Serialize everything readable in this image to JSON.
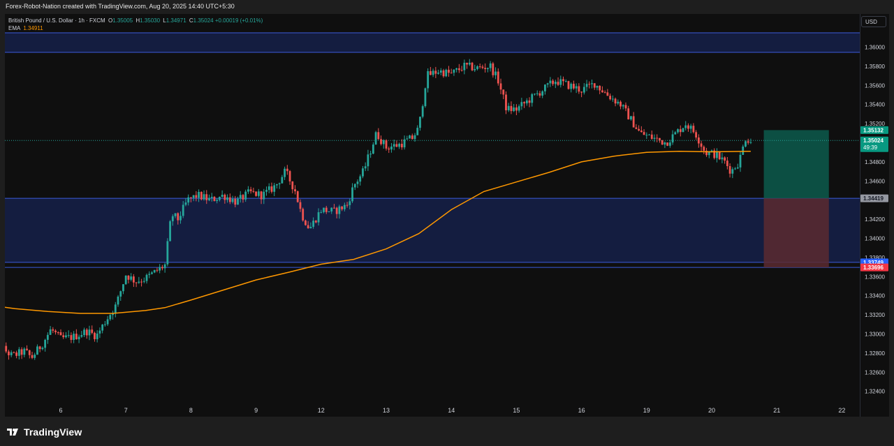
{
  "header": {
    "attribution": "Forex-Robot-Nation created with TradingView.com, Aug 20, 2025 14:40 UTC+5:30"
  },
  "legend": {
    "title": "British Pound / U.S. Dollar · 1h · FXCM",
    "ohlc": [
      {
        "key": "O",
        "value": "1.35005"
      },
      {
        "key": "H",
        "value": "1.35030"
      },
      {
        "key": "L",
        "value": "1.34971"
      },
      {
        "key": "C",
        "value": "1.35024"
      }
    ],
    "change": "+0.00019 (+0.01%)",
    "ema_label": "EMA",
    "ema_value": "1.34911"
  },
  "currency_button": "USD",
  "brand": {
    "name": "TradingView"
  },
  "colors": {
    "up": "#26a69a",
    "down": "#ef5350",
    "ema": "#ff9800",
    "zone_fill": "#1a2a6a",
    "zone_line": "#3b5bdb",
    "target_fill": "#0c5a4c",
    "stop_fill": "#5a2a30"
  },
  "chart_data": {
    "type": "candlestick",
    "symbol": "British Pound / U.S. Dollar",
    "timeframe": "1h",
    "ylim": [
      1.3235,
      1.3612
    ],
    "y_ticks": [
      "1.36000",
      "1.35800",
      "1.35600",
      "1.35400",
      "1.35200",
      "1.34800",
      "1.34600",
      "1.34200",
      "1.34000",
      "1.33800",
      "1.33600",
      "1.33400",
      "1.33200",
      "1.33000",
      "1.32800",
      "1.32600",
      "1.32400"
    ],
    "x_ticks": [
      {
        "label": "6",
        "t": 6.0
      },
      {
        "label": "7",
        "t": 7.0
      },
      {
        "label": "8",
        "t": 8.0
      },
      {
        "label": "9",
        "t": 9.0
      },
      {
        "label": "12",
        "t": 10.0
      },
      {
        "label": "13",
        "t": 11.0
      },
      {
        "label": "14",
        "t": 12.0
      },
      {
        "label": "15",
        "t": 13.0
      },
      {
        "label": "16",
        "t": 14.0
      },
      {
        "label": "19",
        "t": 15.0
      },
      {
        "label": "20",
        "t": 16.0
      },
      {
        "label": "21",
        "t": 17.0
      },
      {
        "label": "22",
        "t": 18.0
      }
    ],
    "t_range": [
      4.85,
      18.1
    ],
    "price_anchors": [
      {
        "t": 4.88,
        "p": 1.3296
      },
      {
        "t": 5.05,
        "p": 1.3288
      },
      {
        "t": 5.25,
        "p": 1.3277
      },
      {
        "t": 5.45,
        "p": 1.3282
      },
      {
        "t": 5.55,
        "p": 1.3275
      },
      {
        "t": 5.72,
        "p": 1.329
      },
      {
        "t": 5.85,
        "p": 1.3305
      },
      {
        "t": 6.0,
        "p": 1.3295
      },
      {
        "t": 6.2,
        "p": 1.3297
      },
      {
        "t": 6.4,
        "p": 1.3303
      },
      {
        "t": 6.55,
        "p": 1.3298
      },
      {
        "t": 6.7,
        "p": 1.3315
      },
      {
        "t": 6.85,
        "p": 1.333
      },
      {
        "t": 7.0,
        "p": 1.3362
      },
      {
        "t": 7.15,
        "p": 1.3355
      },
      {
        "t": 7.3,
        "p": 1.3358
      },
      {
        "t": 7.45,
        "p": 1.3365
      },
      {
        "t": 7.6,
        "p": 1.3372
      },
      {
        "t": 7.7,
        "p": 1.3425
      },
      {
        "t": 7.8,
        "p": 1.342
      },
      {
        "t": 7.95,
        "p": 1.344
      },
      {
        "t": 8.1,
        "p": 1.3445
      },
      {
        "t": 8.3,
        "p": 1.344
      },
      {
        "t": 8.5,
        "p": 1.3445
      },
      {
        "t": 8.7,
        "p": 1.3438
      },
      {
        "t": 8.9,
        "p": 1.3448
      },
      {
        "t": 9.1,
        "p": 1.3445
      },
      {
        "t": 9.3,
        "p": 1.3455
      },
      {
        "t": 9.45,
        "p": 1.347
      },
      {
        "t": 9.6,
        "p": 1.345
      },
      {
        "t": 9.7,
        "p": 1.3425
      },
      {
        "t": 9.82,
        "p": 1.341
      },
      {
        "t": 10.0,
        "p": 1.343
      },
      {
        "t": 10.2,
        "p": 1.3428
      },
      {
        "t": 10.4,
        "p": 1.3435
      },
      {
        "t": 10.5,
        "p": 1.3455
      },
      {
        "t": 10.65,
        "p": 1.347
      },
      {
        "t": 10.85,
        "p": 1.351
      },
      {
        "t": 11.0,
        "p": 1.3495
      },
      {
        "t": 11.2,
        "p": 1.3498
      },
      {
        "t": 11.4,
        "p": 1.3505
      },
      {
        "t": 11.5,
        "p": 1.3515
      },
      {
        "t": 11.62,
        "p": 1.357
      },
      {
        "t": 11.8,
        "p": 1.3575
      },
      {
        "t": 12.0,
        "p": 1.3572
      },
      {
        "t": 12.2,
        "p": 1.358
      },
      {
        "t": 12.4,
        "p": 1.3578
      },
      {
        "t": 12.6,
        "p": 1.358
      },
      {
        "t": 12.72,
        "p": 1.3565
      },
      {
        "t": 12.85,
        "p": 1.3535
      },
      {
        "t": 13.0,
        "p": 1.3535
      },
      {
        "t": 13.2,
        "p": 1.3545
      },
      {
        "t": 13.4,
        "p": 1.3555
      },
      {
        "t": 13.6,
        "p": 1.3565
      },
      {
        "t": 13.8,
        "p": 1.356
      },
      {
        "t": 14.0,
        "p": 1.3555
      },
      {
        "t": 14.2,
        "p": 1.3562
      },
      {
        "t": 14.4,
        "p": 1.355
      },
      {
        "t": 14.6,
        "p": 1.354
      },
      {
        "t": 14.75,
        "p": 1.3525
      },
      {
        "t": 14.9,
        "p": 1.351
      },
      {
        "t": 15.1,
        "p": 1.3505
      },
      {
        "t": 15.3,
        "p": 1.35
      },
      {
        "t": 15.45,
        "p": 1.351
      },
      {
        "t": 15.6,
        "p": 1.352
      },
      {
        "t": 15.75,
        "p": 1.351
      },
      {
        "t": 15.9,
        "p": 1.349
      },
      {
        "t": 16.05,
        "p": 1.3488
      },
      {
        "t": 16.2,
        "p": 1.348
      },
      {
        "t": 16.3,
        "p": 1.347
      },
      {
        "t": 16.42,
        "p": 1.348
      },
      {
        "t": 16.52,
        "p": 1.3505
      },
      {
        "t": 16.6,
        "p": 1.3502
      }
    ],
    "ema_path": [
      {
        "t": 4.85,
        "p": 1.33305
      },
      {
        "t": 5.3,
        "p": 1.33265
      },
      {
        "t": 5.8,
        "p": 1.33235
      },
      {
        "t": 6.3,
        "p": 1.33215
      },
      {
        "t": 6.8,
        "p": 1.33215
      },
      {
        "t": 7.3,
        "p": 1.33245
      },
      {
        "t": 7.6,
        "p": 1.33275
      },
      {
        "t": 8.0,
        "p": 1.33355
      },
      {
        "t": 8.5,
        "p": 1.3346
      },
      {
        "t": 9.0,
        "p": 1.33565
      },
      {
        "t": 9.5,
        "p": 1.33645
      },
      {
        "t": 10.0,
        "p": 1.3373
      },
      {
        "t": 10.5,
        "p": 1.3378
      },
      {
        "t": 11.0,
        "p": 1.3389
      },
      {
        "t": 11.5,
        "p": 1.3405
      },
      {
        "t": 12.0,
        "p": 1.343
      },
      {
        "t": 12.5,
        "p": 1.3449
      },
      {
        "t": 13.0,
        "p": 1.3459
      },
      {
        "t": 13.5,
        "p": 1.3469
      },
      {
        "t": 14.0,
        "p": 1.348
      },
      {
        "t": 14.5,
        "p": 1.3486
      },
      {
        "t": 15.0,
        "p": 1.349
      },
      {
        "t": 15.5,
        "p": 1.3491
      },
      {
        "t": 16.0,
        "p": 1.34905
      },
      {
        "t": 16.6,
        "p": 1.34911
      }
    ],
    "zones": [
      {
        "name": "upper-zone",
        "top": 1.3615,
        "bottom": 1.35945
      },
      {
        "name": "demand-zone",
        "top": 1.34419,
        "bottom": 1.33749
      }
    ],
    "position": {
      "t_start": 16.8,
      "t_end": 17.8,
      "entry": 1.34419,
      "target": 1.35132,
      "stop": 1.33696
    },
    "current_price": 1.35024,
    "price_labels": [
      {
        "value": "1.35132",
        "price": 1.35132,
        "bg": "#089981",
        "fg": "#ffffff"
      },
      {
        "value": "1.35024",
        "price": 1.35024,
        "bg": "#089981",
        "fg": "#ffffff",
        "sub": "49:39"
      },
      {
        "value": "1.34419",
        "price": 1.34419,
        "bg": "#9598a1",
        "fg": "#131722"
      },
      {
        "value": "1.33749",
        "price": 1.33749,
        "bg": "#2962ff",
        "fg": "#ffffff"
      },
      {
        "value": "1.33696",
        "price": 1.33696,
        "bg": "#f23645",
        "fg": "#ffffff"
      }
    ]
  }
}
